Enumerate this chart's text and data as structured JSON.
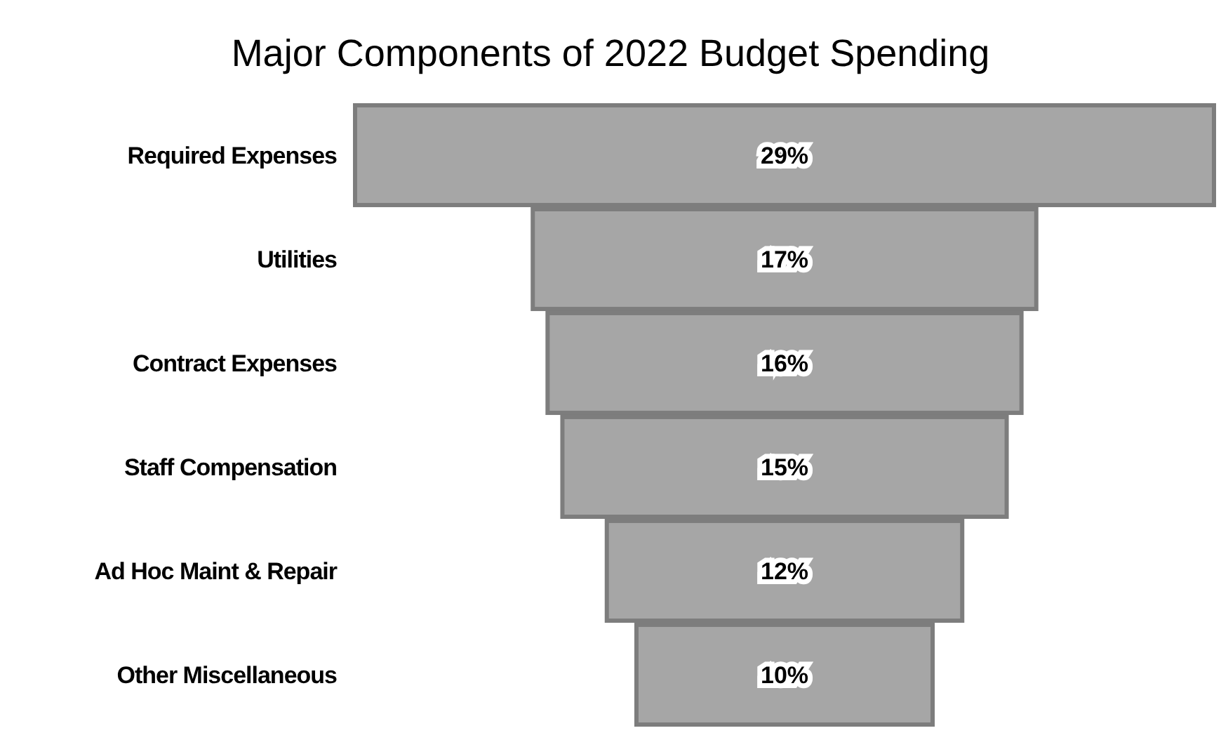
{
  "chart_data": {
    "type": "other",
    "title": "Major Components of 2022 Budget Spending",
    "categories": [
      "Required Expenses",
      "Utilities",
      "Contract Expenses",
      "Staff Compensation",
      "Ad Hoc Maint & Repair",
      "Other Miscellaneous"
    ],
    "values": [
      29,
      17,
      16,
      15,
      12,
      10
    ],
    "value_labels": [
      "29%",
      "17%",
      "16%",
      "15%",
      "12%",
      "10%"
    ],
    "color": "#a6a6a6"
  }
}
